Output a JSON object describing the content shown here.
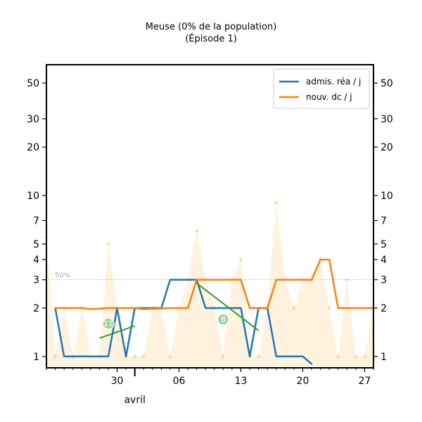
{
  "chart_data": {
    "type": "line",
    "title": "Meuse (0% de la population)",
    "subtitle": "(Épisode 1)",
    "xlabel": "",
    "ylabel": "",
    "yscale": "log",
    "ylim": [
      0.85,
      65
    ],
    "xlim": [
      "2020-03-22",
      "2020-04-28"
    ],
    "x_tick_labels": [
      {
        "date": "2020-03-30",
        "label": "30"
      },
      {
        "date": "2020-04-06",
        "label": "06"
      },
      {
        "date": "2020-04-13",
        "label": "13"
      },
      {
        "date": "2020-04-20",
        "label": "20"
      },
      {
        "date": "2020-04-27",
        "label": "27"
      }
    ],
    "month_label": {
      "date": "2020-04-01",
      "label": "avril"
    },
    "y_ticks": [
      1,
      2,
      3,
      4,
      5,
      7,
      10,
      20,
      30,
      50
    ],
    "y_tick_labels": [
      "1",
      "2",
      "3",
      "4",
      "5",
      "7",
      "10",
      "20",
      "30",
      "50"
    ],
    "reference_line": {
      "y": 3,
      "label": "50%"
    },
    "legend": {
      "position": "top-right"
    },
    "series": [
      {
        "name": "admis. réa / j",
        "color": "#1f77b4",
        "points": [
          [
            "2020-03-23",
            2.0
          ],
          [
            "2020-03-24",
            1.0
          ],
          [
            "2020-03-25",
            1.0
          ],
          [
            "2020-03-26",
            1.0
          ],
          [
            "2020-03-27",
            1.0
          ],
          [
            "2020-03-28",
            1.0
          ],
          [
            "2020-03-29",
            1.0
          ],
          [
            "2020-03-30",
            2.0
          ],
          [
            "2020-03-31",
            1.0
          ],
          [
            "2020-04-01",
            2.0
          ],
          [
            "2020-04-02",
            2.0
          ],
          [
            "2020-04-03",
            2.0
          ],
          [
            "2020-04-04",
            2.0
          ],
          [
            "2020-04-05",
            3.0
          ],
          [
            "2020-04-06",
            3.0
          ],
          [
            "2020-04-07",
            3.0
          ],
          [
            "2020-04-08",
            3.0
          ],
          [
            "2020-04-09",
            2.0
          ],
          [
            "2020-04-10",
            2.0
          ],
          [
            "2020-04-11",
            2.0
          ],
          [
            "2020-04-12",
            2.0
          ],
          [
            "2020-04-13",
            2.0
          ],
          [
            "2020-04-14",
            1.0
          ],
          [
            "2020-04-15",
            2.0
          ],
          [
            "2020-04-16",
            2.0
          ],
          [
            "2020-04-17",
            1.0
          ],
          [
            "2020-04-18",
            1.0
          ],
          [
            "2020-04-19",
            1.0
          ],
          [
            "2020-04-20",
            1.0
          ],
          [
            "2020-04-21",
            0.9
          ]
        ]
      },
      {
        "name": "nouv. dc / j",
        "color": "#ff7f0e",
        "points": [
          [
            "2020-03-23",
            2.0
          ],
          [
            "2020-03-26",
            2.0
          ],
          [
            "2020-03-27",
            1.97
          ],
          [
            "2020-03-29",
            2.0
          ],
          [
            "2020-04-01",
            2.0
          ],
          [
            "2020-04-02",
            1.97
          ],
          [
            "2020-04-05",
            2.0
          ],
          [
            "2020-04-07",
            2.0
          ],
          [
            "2020-04-08",
            3.0
          ],
          [
            "2020-04-11",
            3.0
          ],
          [
            "2020-04-13",
            3.0
          ],
          [
            "2020-04-14",
            2.0
          ],
          [
            "2020-04-16",
            2.0
          ],
          [
            "2020-04-17",
            3.0
          ],
          [
            "2020-04-20",
            3.0
          ],
          [
            "2020-04-21",
            3.0
          ],
          [
            "2020-04-22",
            4.0
          ],
          [
            "2020-04-23",
            4.0
          ],
          [
            "2020-04-24",
            2.0
          ],
          [
            "2020-04-26",
            2.0
          ],
          [
            "2020-04-28",
            2.0
          ]
        ]
      }
    ],
    "background_series": {
      "color": "#ffe7c4",
      "points": [
        [
          "2020-03-22",
          5.5
        ],
        [
          "2020-03-23",
          1.0
        ],
        [
          "2020-03-24",
          2.0
        ],
        [
          "2020-03-25",
          1.0
        ],
        [
          "2020-03-26",
          2.0
        ],
        [
          "2020-03-27",
          1.0
        ],
        [
          "2020-03-28",
          1.0
        ],
        [
          "2020-03-29",
          5.0
        ],
        [
          "2020-03-30",
          2.0
        ],
        [
          "2020-03-31",
          1.0
        ],
        [
          "2020-04-01",
          1.0
        ],
        [
          "2020-04-02",
          1.0
        ],
        [
          "2020-04-03",
          2.0
        ],
        [
          "2020-04-04",
          2.0
        ],
        [
          "2020-04-05",
          1.0
        ],
        [
          "2020-04-06",
          2.0
        ],
        [
          "2020-04-07",
          3.0
        ],
        [
          "2020-04-08",
          6.0
        ],
        [
          "2020-04-09",
          3.0
        ],
        [
          "2020-04-10",
          2.0
        ],
        [
          "2020-04-11",
          1.0
        ],
        [
          "2020-04-12",
          3.0
        ],
        [
          "2020-04-13",
          4.0
        ],
        [
          "2020-04-14",
          1.0
        ],
        [
          "2020-04-15",
          1.0
        ],
        [
          "2020-04-16",
          2.0
        ],
        [
          "2020-04-17",
          9.0
        ],
        [
          "2020-04-18",
          3.0
        ],
        [
          "2020-04-19",
          2.0
        ],
        [
          "2020-04-20",
          3.0
        ],
        [
          "2020-04-21",
          3.0
        ],
        [
          "2020-04-22",
          4.0
        ],
        [
          "2020-04-23",
          2.0
        ],
        [
          "2020-04-24",
          1.0
        ],
        [
          "2020-04-25",
          3.0
        ],
        [
          "2020-04-26",
          1.0
        ],
        [
          "2020-04-27",
          1.0
        ],
        [
          "2020-04-28",
          2.0
        ]
      ]
    },
    "trend_lines": [
      {
        "color": "#2ca02c",
        "from": [
          "2020-03-28",
          1.3
        ],
        "to": [
          "2020-04-01",
          1.55
        ],
        "badge": "17",
        "badge_at": [
          "2020-03-29",
          1.6
        ]
      },
      {
        "color": "#2ca02c",
        "from": [
          "2020-04-08",
          2.85
        ],
        "to": [
          "2020-04-15",
          1.45
        ],
        "badge": "8",
        "badge_at": [
          "2020-04-11",
          1.7
        ]
      }
    ]
  }
}
